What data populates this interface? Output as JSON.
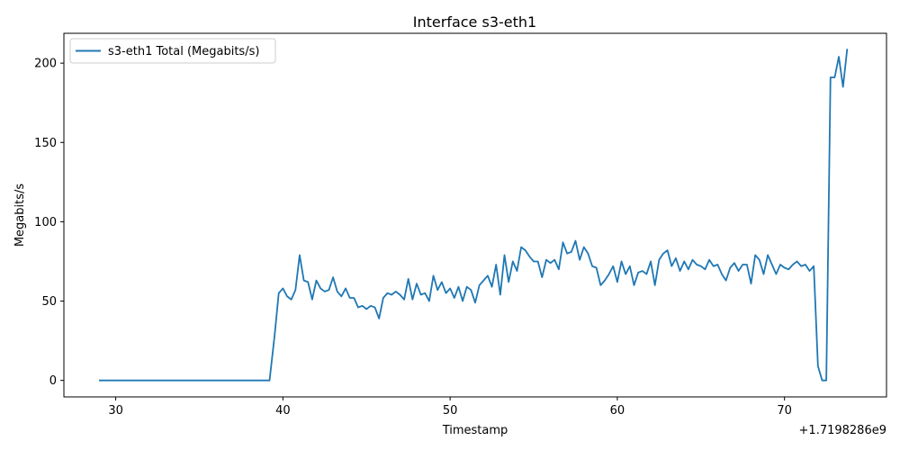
{
  "chart_data": {
    "type": "line",
    "title": "Interface s3-eth1",
    "xlabel": "Timestamp",
    "ylabel": "Megabits/s",
    "x_offset_label": "+1.7198286e9",
    "xlim": [
      26.9,
      76.1
    ],
    "ylim": [
      -10.4,
      218.8
    ],
    "x_ticks": [
      30,
      40,
      50,
      60,
      70
    ],
    "y_ticks": [
      0,
      50,
      100,
      150,
      200
    ],
    "legend_position": "top-left",
    "grid": false,
    "series": [
      {
        "name": "s3-eth1 Total (Megabits/s)",
        "color": "#1f77b4",
        "x": [
          29.0,
          29.5,
          30.0,
          30.5,
          31.0,
          31.5,
          32.0,
          32.5,
          33.0,
          33.5,
          34.0,
          34.5,
          35.0,
          35.5,
          36.0,
          36.5,
          37.0,
          37.5,
          38.0,
          38.5,
          39.0,
          39.2,
          39.5,
          39.75,
          40.0,
          40.25,
          40.5,
          40.75,
          41.0,
          41.25,
          41.5,
          41.75,
          42.0,
          42.25,
          42.5,
          42.75,
          43.0,
          43.25,
          43.5,
          43.75,
          44.0,
          44.25,
          44.5,
          44.75,
          45.0,
          45.25,
          45.5,
          45.75,
          46.0,
          46.25,
          46.5,
          46.75,
          47.0,
          47.25,
          47.5,
          47.75,
          48.0,
          48.25,
          48.5,
          48.75,
          49.0,
          49.25,
          49.5,
          49.75,
          50.0,
          50.25,
          50.5,
          50.75,
          51.0,
          51.25,
          51.5,
          51.75,
          52.0,
          52.25,
          52.5,
          52.75,
          53.0,
          53.25,
          53.5,
          53.75,
          54.0,
          54.25,
          54.5,
          54.75,
          55.0,
          55.25,
          55.5,
          55.75,
          56.0,
          56.25,
          56.5,
          56.75,
          57.0,
          57.25,
          57.5,
          57.75,
          58.0,
          58.25,
          58.5,
          58.75,
          59.0,
          59.25,
          59.5,
          59.75,
          60.0,
          60.25,
          60.5,
          60.75,
          61.0,
          61.25,
          61.5,
          61.75,
          62.0,
          62.25,
          62.5,
          62.75,
          63.0,
          63.25,
          63.5,
          63.75,
          64.0,
          64.25,
          64.5,
          64.75,
          65.0,
          65.25,
          65.5,
          65.75,
          66.0,
          66.25,
          66.5,
          66.75,
          67.0,
          67.25,
          67.5,
          67.75,
          68.0,
          68.25,
          68.5,
          68.75,
          69.0,
          69.25,
          69.5,
          69.75,
          70.0,
          70.25,
          70.5,
          70.75,
          71.0,
          71.25,
          71.5,
          71.75,
          72.0,
          72.25,
          72.5,
          72.75,
          73.0,
          73.25,
          73.5,
          73.75
        ],
        "values": [
          0,
          0,
          0,
          0,
          0,
          0,
          0,
          0,
          0,
          0,
          0,
          0,
          0,
          0,
          0,
          0,
          0,
          0,
          0,
          0,
          0,
          0,
          28,
          55,
          58,
          53,
          51,
          57,
          79,
          63,
          62,
          51,
          63,
          58,
          56,
          57,
          65,
          56,
          53,
          58,
          52,
          52,
          46,
          47,
          45,
          47,
          46,
          39,
          52,
          55,
          54,
          56,
          54,
          51,
          64,
          51,
          61,
          54,
          55,
          50,
          66,
          57,
          62,
          55,
          58,
          52,
          59,
          50,
          59,
          57,
          49,
          60,
          63,
          66,
          59,
          73,
          54,
          79,
          62,
          75,
          69,
          84,
          82,
          78,
          75,
          75,
          65,
          76,
          74,
          76,
          70,
          87,
          80,
          81,
          88,
          76,
          84,
          80,
          72,
          71,
          60,
          63,
          67,
          72,
          62,
          75,
          67,
          72,
          60,
          68,
          69,
          67,
          75,
          60,
          76,
          80,
          82,
          72,
          77,
          69,
          75,
          70,
          76,
          73,
          72,
          70,
          76,
          72,
          73,
          67,
          63,
          71,
          74,
          69,
          73,
          73,
          61,
          79,
          76,
          67,
          79,
          73,
          67,
          73,
          71,
          70,
          73,
          75,
          72,
          73,
          69,
          72,
          9,
          0,
          0,
          191,
          191,
          204,
          185,
          209
        ]
      }
    ]
  }
}
